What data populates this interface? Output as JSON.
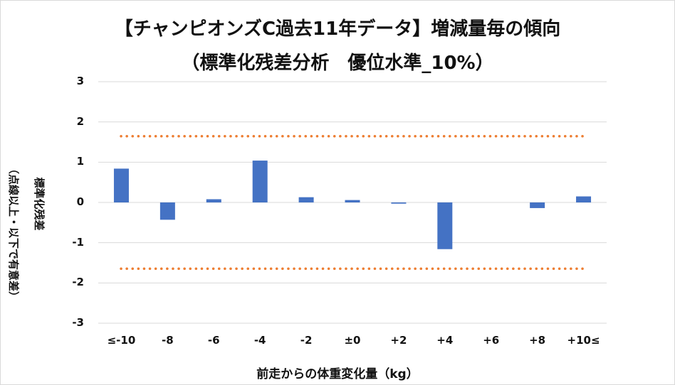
{
  "chart_data": {
    "type": "bar",
    "title": "【チャンピオンズC過去11年データ】増減量毎の傾向",
    "subtitle": "（標準化残差分析　優位水準_10%）",
    "xlabel": "前走からの体重変化量（kg）",
    "ylabel": "標準化残差",
    "ylabel_note": "（点線以上・以下で有意差）",
    "categories": [
      "≤-10",
      "-8",
      "-6",
      "-4",
      "-2",
      "±0",
      "+2",
      "+4",
      "+6",
      "+8",
      "+10≤"
    ],
    "values": [
      0.84,
      -0.43,
      0.08,
      1.04,
      0.13,
      0.06,
      -0.03,
      -1.16,
      0.0,
      -0.14,
      0.15
    ],
    "ylim": [
      -3,
      3
    ],
    "yticks": [
      "3",
      "2",
      "1",
      "0",
      "-1",
      "-2",
      "-3"
    ],
    "threshold_lines": [
      1.645,
      -1.645
    ],
    "grid": true,
    "bar_color": "#4472c4",
    "threshold_color": "#ed7d31",
    "grid_color": "#d9d9d9"
  }
}
